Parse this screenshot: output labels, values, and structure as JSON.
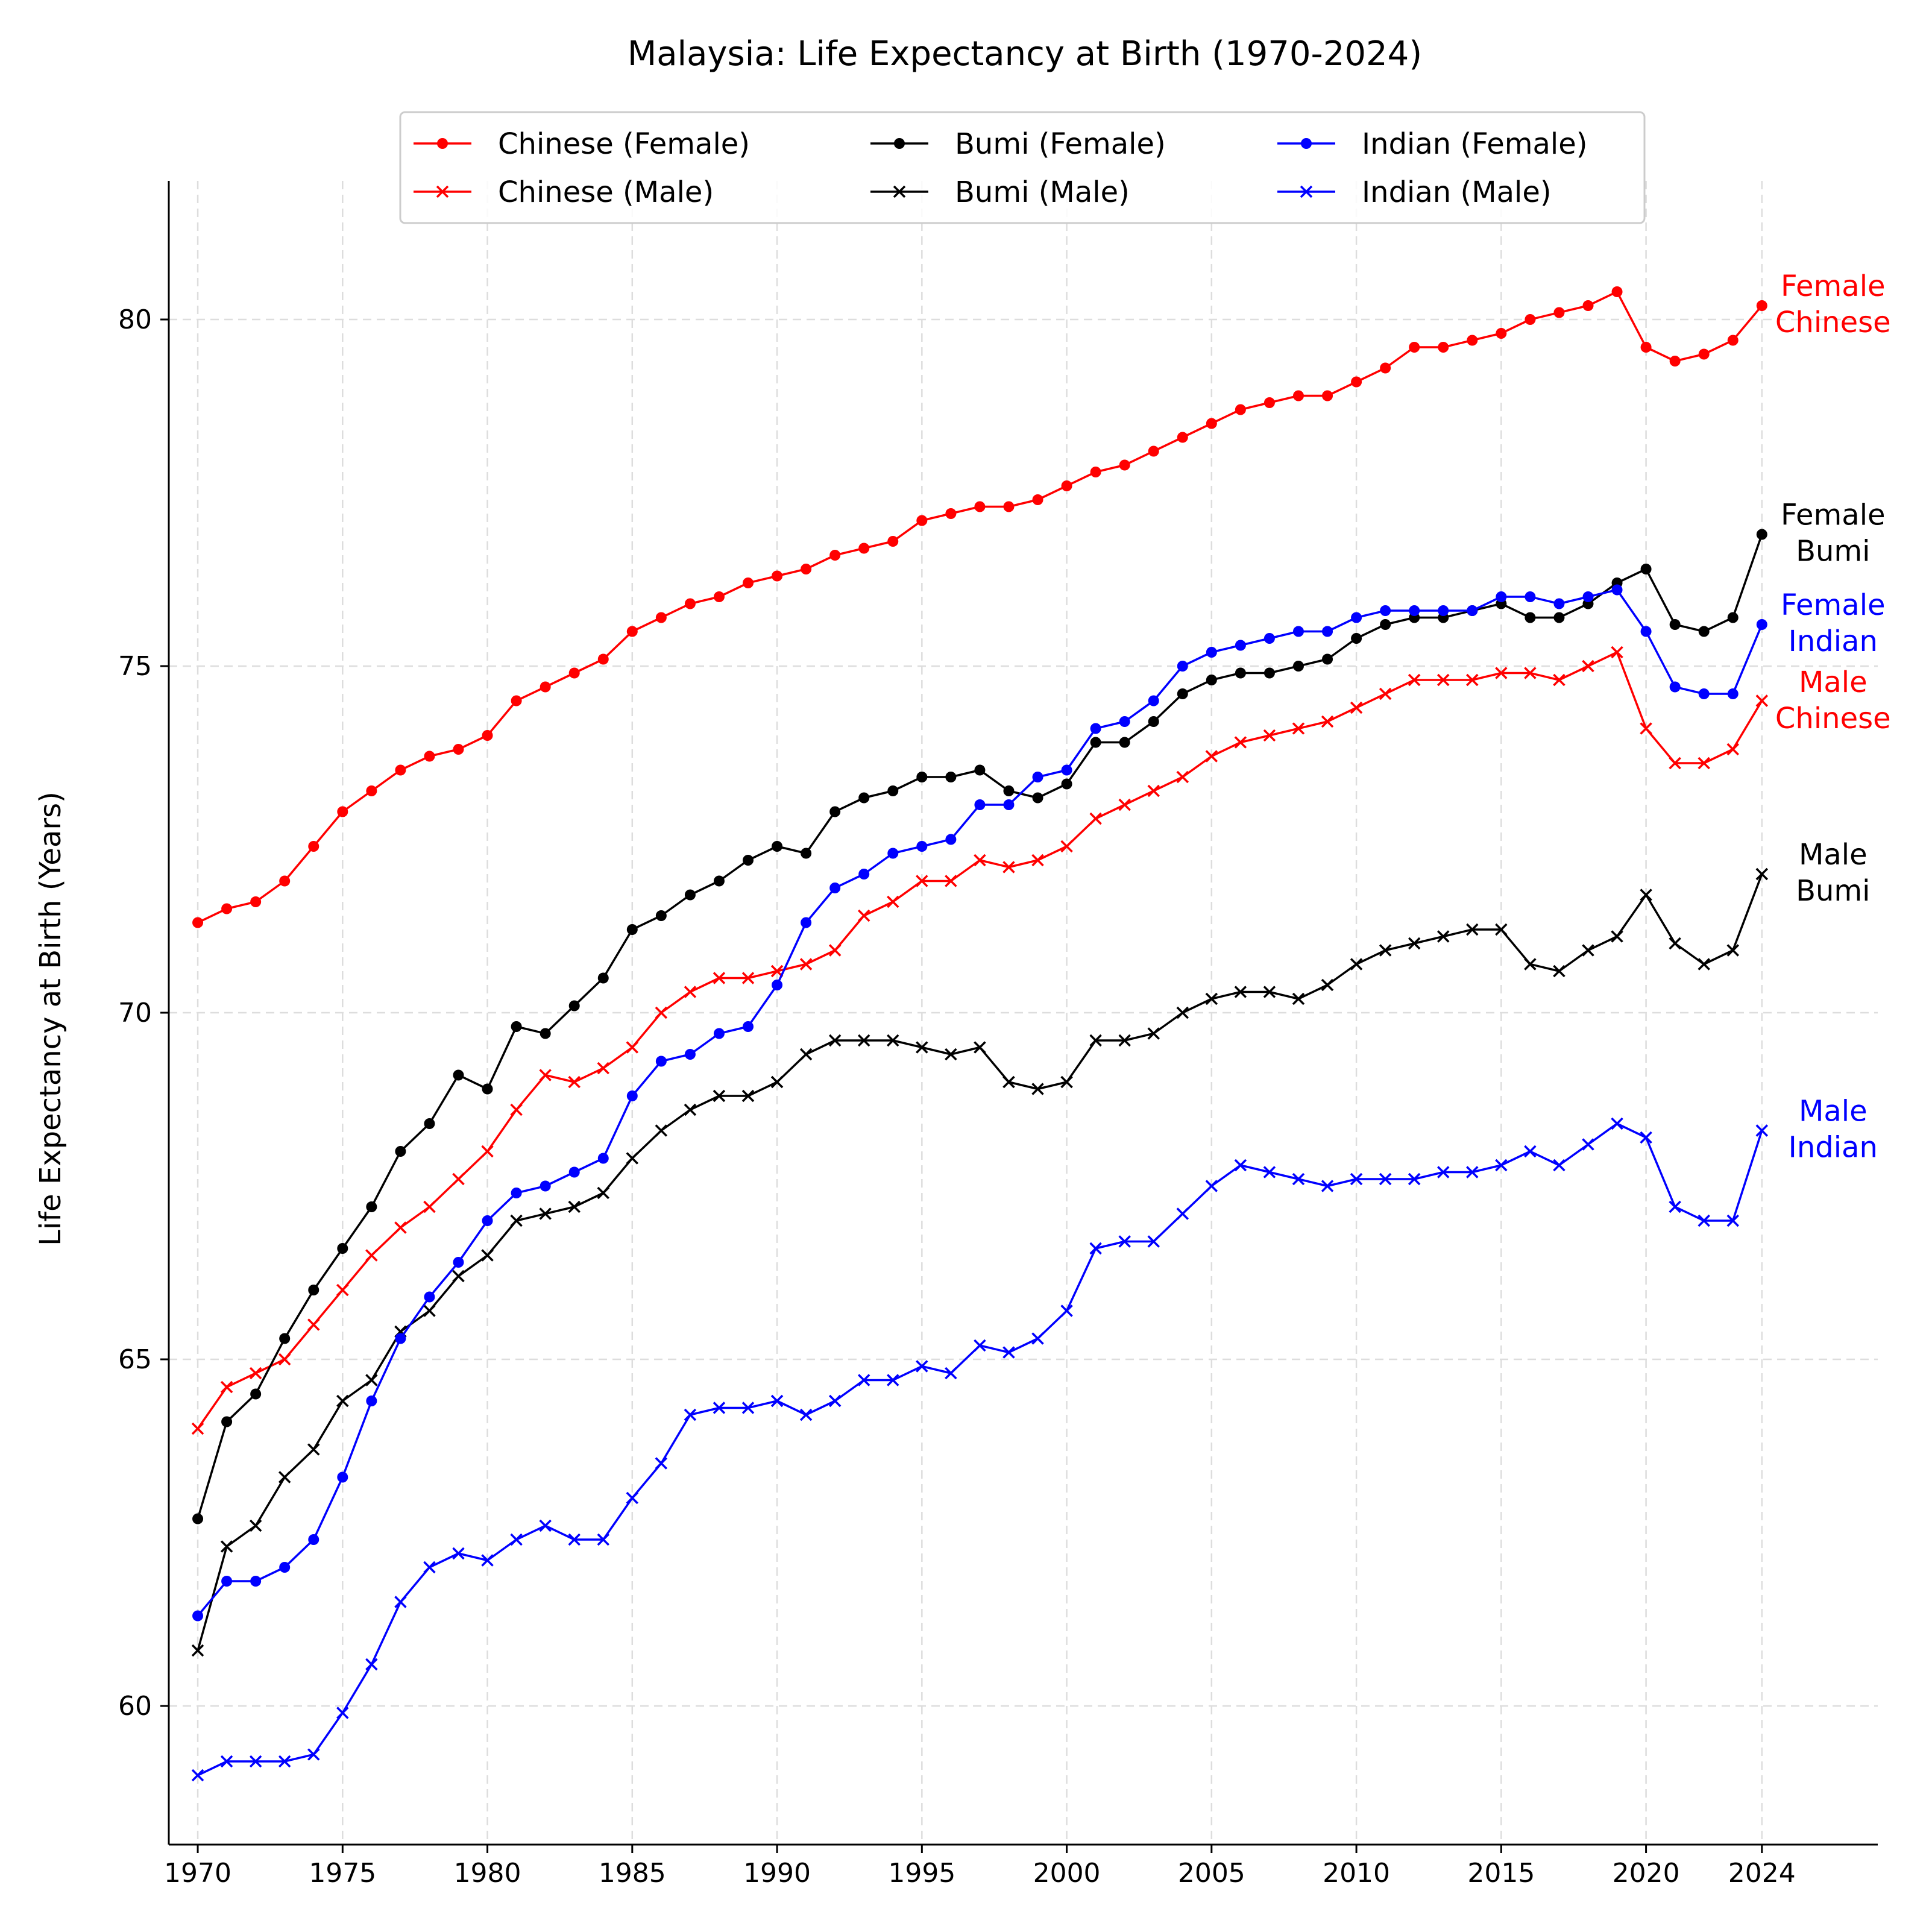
{
  "chart_data": {
    "type": "line",
    "title": "Malaysia: Life Expectancy at Birth (1970-2024)",
    "xlabel": "",
    "ylabel": "Life Expectancy at Birth (Years)",
    "xlim": [
      1969,
      2028
    ],
    "ylim": [
      58,
      82
    ],
    "x_ticks": [
      1970,
      1975,
      1980,
      1985,
      1990,
      1995,
      2000,
      2005,
      2010,
      2015,
      2020,
      2024
    ],
    "y_ticks": [
      60,
      65,
      70,
      75,
      80
    ],
    "grid": true,
    "legend_position": "top-center",
    "legend_columns": 3,
    "years": [
      1970,
      1971,
      1972,
      1973,
      1974,
      1975,
      1976,
      1977,
      1978,
      1979,
      1980,
      1981,
      1982,
      1983,
      1984,
      1985,
      1986,
      1987,
      1988,
      1989,
      1990,
      1991,
      1992,
      1993,
      1994,
      1995,
      1996,
      1997,
      1998,
      1999,
      2000,
      2001,
      2002,
      2003,
      2004,
      2005,
      2006,
      2007,
      2008,
      2009,
      2010,
      2011,
      2012,
      2013,
      2014,
      2015,
      2016,
      2017,
      2018,
      2019,
      2020,
      2021,
      2022,
      2023,
      2024
    ],
    "series": [
      {
        "name": "Chinese (Female)",
        "color": "#ff0000",
        "marker": "dot",
        "end_label": [
          "Female",
          "Chinese"
        ],
        "values": [
          71.3,
          71.5,
          71.6,
          71.9,
          72.4,
          72.9,
          73.2,
          73.5,
          73.7,
          73.8,
          74.0,
          74.5,
          74.7,
          74.9,
          75.1,
          75.5,
          75.7,
          75.9,
          76.0,
          76.2,
          76.3,
          76.4,
          76.6,
          76.7,
          76.8,
          77.1,
          77.2,
          77.3,
          77.3,
          77.4,
          77.6,
          77.8,
          77.9,
          78.1,
          78.3,
          78.5,
          78.7,
          78.8,
          78.9,
          78.9,
          79.1,
          79.3,
          79.6,
          79.6,
          79.7,
          79.8,
          80.0,
          80.1,
          80.2,
          80.4,
          79.6,
          79.4,
          79.5,
          79.7,
          80.2
        ]
      },
      {
        "name": "Chinese (Male)",
        "color": "#ff0000",
        "marker": "x",
        "end_label": [
          "Male",
          "Chinese"
        ],
        "values": [
          64.0,
          64.6,
          64.8,
          65.0,
          65.5,
          66.0,
          66.5,
          66.9,
          67.2,
          67.6,
          68.0,
          68.6,
          69.1,
          69.0,
          69.2,
          69.5,
          70.0,
          70.3,
          70.5,
          70.5,
          70.6,
          70.7,
          70.9,
          71.4,
          71.6,
          71.9,
          71.9,
          72.2,
          72.1,
          72.2,
          72.4,
          72.8,
          73.0,
          73.2,
          73.4,
          73.7,
          73.9,
          74.0,
          74.1,
          74.2,
          74.4,
          74.6,
          74.8,
          74.8,
          74.8,
          74.9,
          74.9,
          74.8,
          75.0,
          75.2,
          74.1,
          73.6,
          73.6,
          73.8,
          74.5
        ]
      },
      {
        "name": "Bumi (Female)",
        "color": "#000000",
        "marker": "dot",
        "end_label": [
          "Female",
          "Bumi"
        ],
        "values": [
          62.7,
          64.1,
          64.5,
          65.3,
          66.0,
          66.6,
          67.2,
          68.0,
          68.4,
          69.1,
          68.9,
          69.8,
          69.7,
          70.1,
          70.5,
          71.2,
          71.4,
          71.7,
          71.9,
          72.2,
          72.4,
          72.3,
          72.9,
          73.1,
          73.2,
          73.4,
          73.4,
          73.5,
          73.2,
          73.1,
          73.3,
          73.9,
          73.9,
          74.2,
          74.6,
          74.8,
          74.9,
          74.9,
          75.0,
          75.1,
          75.4,
          75.6,
          75.7,
          75.7,
          75.8,
          75.9,
          75.7,
          75.7,
          75.9,
          76.2,
          76.4,
          75.6,
          75.5,
          75.7,
          76.9
        ]
      },
      {
        "name": "Bumi (Male)",
        "color": "#000000",
        "marker": "x",
        "end_label": [
          "Male",
          "Bumi"
        ],
        "values": [
          60.8,
          62.3,
          62.6,
          63.3,
          63.7,
          64.4,
          64.7,
          65.4,
          65.7,
          66.2,
          66.5,
          67.0,
          67.1,
          67.2,
          67.4,
          67.9,
          68.3,
          68.6,
          68.8,
          68.8,
          69.0,
          69.4,
          69.6,
          69.6,
          69.6,
          69.5,
          69.4,
          69.5,
          69.0,
          68.9,
          69.0,
          69.6,
          69.6,
          69.7,
          70.0,
          70.2,
          70.3,
          70.3,
          70.2,
          70.4,
          70.7,
          70.9,
          71.0,
          71.1,
          71.2,
          71.2,
          70.7,
          70.6,
          70.9,
          71.1,
          71.7,
          71.0,
          70.7,
          70.9,
          72.0
        ]
      },
      {
        "name": "Indian (Female)",
        "color": "#0000ff",
        "marker": "dot",
        "end_label": [
          "Female",
          "Indian"
        ],
        "values": [
          61.3,
          61.8,
          61.8,
          62.0,
          62.4,
          63.3,
          64.4,
          65.3,
          65.9,
          66.4,
          67.0,
          67.4,
          67.5,
          67.7,
          67.9,
          68.8,
          69.3,
          69.4,
          69.7,
          69.8,
          70.4,
          71.3,
          71.8,
          72.0,
          72.3,
          72.4,
          72.5,
          73.0,
          73.0,
          73.4,
          73.5,
          74.1,
          74.2,
          74.5,
          75.0,
          75.2,
          75.3,
          75.4,
          75.5,
          75.5,
          75.7,
          75.8,
          75.8,
          75.8,
          75.8,
          76.0,
          76.0,
          75.9,
          76.0,
          76.1,
          75.5,
          74.7,
          74.6,
          74.6,
          75.6
        ]
      },
      {
        "name": "Indian (Male)",
        "color": "#0000ff",
        "marker": "x",
        "end_label": [
          "Male",
          "Indian"
        ],
        "values": [
          59.0,
          59.2,
          59.2,
          59.2,
          59.3,
          59.9,
          60.6,
          61.5,
          62.0,
          62.2,
          62.1,
          62.4,
          62.6,
          62.4,
          62.4,
          63.0,
          63.5,
          64.2,
          64.3,
          64.3,
          64.4,
          64.2,
          64.4,
          64.7,
          64.7,
          64.9,
          64.8,
          65.2,
          65.1,
          65.3,
          65.7,
          66.6,
          66.7,
          66.7,
          67.1,
          67.5,
          67.8,
          67.7,
          67.6,
          67.5,
          67.6,
          67.6,
          67.6,
          67.7,
          67.7,
          67.8,
          68.0,
          67.8,
          68.1,
          68.4,
          68.2,
          67.2,
          67.0,
          67.0,
          68.3
        ]
      }
    ]
  }
}
